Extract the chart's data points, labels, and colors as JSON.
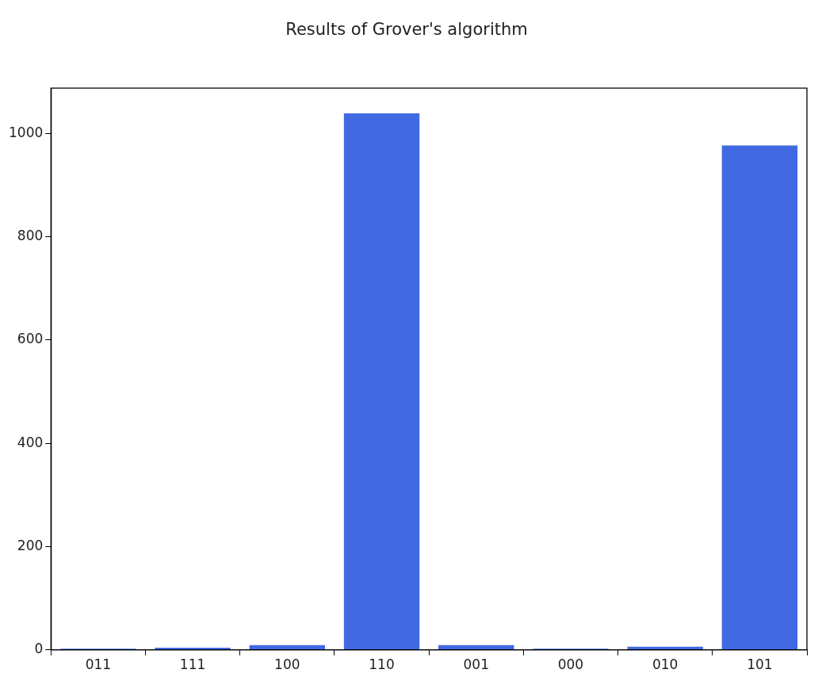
{
  "chart_data": {
    "type": "bar",
    "title": "Results of Grover's algorithm",
    "categories": [
      "011",
      "111",
      "100",
      "110",
      "001",
      "000",
      "010",
      "101"
    ],
    "values": [
      2,
      4,
      9,
      1039,
      9,
      2,
      6,
      977
    ],
    "color": "#4169e1",
    "ylim": [
      0,
      1088
    ],
    "yticks": [
      0,
      200,
      400,
      600,
      800,
      1000
    ],
    "grid": false,
    "legend": false
  }
}
